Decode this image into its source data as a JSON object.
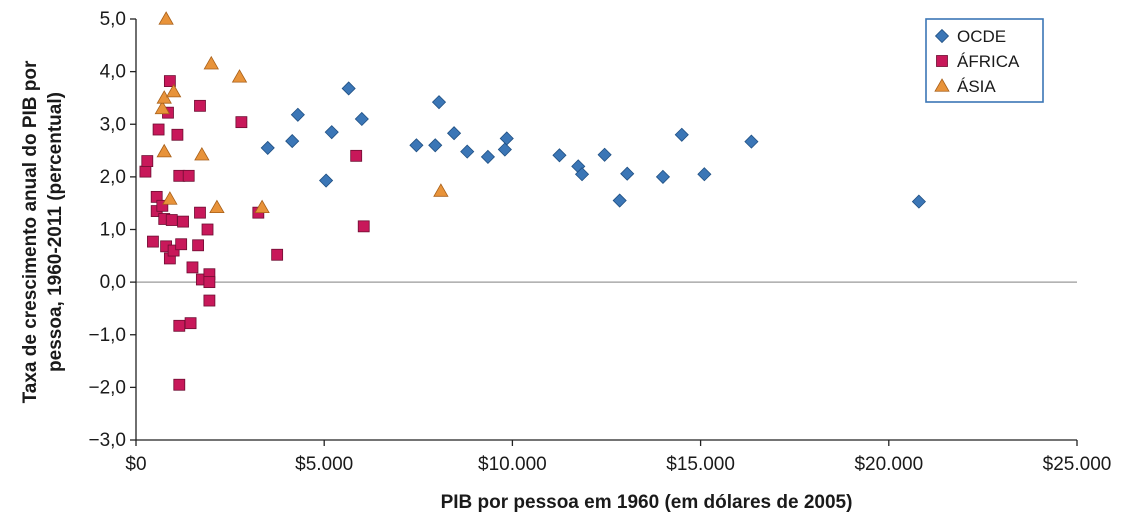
{
  "chart_data": {
    "type": "scatter",
    "xlabel": "PIB por pessoa em 1960 (em dólares de 2005)",
    "ylabel": [
      "Taxa de crescimento anual do PIB por",
      "pessoa, 1960-2011 (percentual)"
    ],
    "xlim": [
      0,
      25000
    ],
    "ylim": [
      -3,
      5
    ],
    "x_ticks": [
      0,
      5000,
      10000,
      15000,
      20000,
      25000
    ],
    "x_tick_labels": [
      "$0",
      "$5.000",
      "$10.000",
      "$15.000",
      "$20.000",
      "$25.000"
    ],
    "y_ticks": [
      5,
      4,
      3,
      2,
      1,
      0,
      -1,
      -2,
      -3
    ],
    "y_tick_labels": [
      "5,0",
      "4,0",
      "3,0",
      "2,0",
      "1,0",
      "0,0",
      "−1,0",
      "−2,0",
      "−3,0"
    ],
    "grid": false,
    "zero_line": true,
    "legend_position": "top-right",
    "series": [
      {
        "name": "OCDE",
        "marker": "diamond",
        "color": "#3b76b6",
        "points": [
          [
            3500,
            2.55
          ],
          [
            4150,
            2.68
          ],
          [
            4300,
            3.18
          ],
          [
            5050,
            1.93
          ],
          [
            5200,
            2.85
          ],
          [
            5650,
            3.68
          ],
          [
            6000,
            3.1
          ],
          [
            7450,
            2.6
          ],
          [
            7950,
            2.6
          ],
          [
            8050,
            3.42
          ],
          [
            8450,
            2.83
          ],
          [
            8800,
            2.48
          ],
          [
            9350,
            2.38
          ],
          [
            9800,
            2.52
          ],
          [
            9850,
            2.73
          ],
          [
            11250,
            2.41
          ],
          [
            11750,
            2.2
          ],
          [
            11850,
            2.05
          ],
          [
            12450,
            2.42
          ],
          [
            12850,
            1.55
          ],
          [
            13050,
            2.06
          ],
          [
            14000,
            2.0
          ],
          [
            14500,
            2.8
          ],
          [
            15100,
            2.05
          ],
          [
            16350,
            2.67
          ],
          [
            20800,
            1.53
          ]
        ]
      },
      {
        "name": "ÁFRICA",
        "marker": "square",
        "color": "#c8185a",
        "points": [
          [
            250,
            2.1
          ],
          [
            300,
            2.3
          ],
          [
            450,
            0.77
          ],
          [
            550,
            1.62
          ],
          [
            600,
            2.9
          ],
          [
            550,
            1.35
          ],
          [
            700,
            1.45
          ],
          [
            750,
            1.2
          ],
          [
            800,
            0.68
          ],
          [
            850,
            3.22
          ],
          [
            900,
            3.82
          ],
          [
            900,
            0.45
          ],
          [
            950,
            1.18
          ],
          [
            1000,
            0.6
          ],
          [
            1100,
            2.8
          ],
          [
            1150,
            2.02
          ],
          [
            1150,
            -0.83
          ],
          [
            1150,
            -1.95
          ],
          [
            1200,
            0.72
          ],
          [
            1250,
            1.15
          ],
          [
            1400,
            2.02
          ],
          [
            1450,
            -0.78
          ],
          [
            1500,
            0.28
          ],
          [
            1650,
            0.7
          ],
          [
            1700,
            3.35
          ],
          [
            1700,
            1.32
          ],
          [
            1750,
            0.05
          ],
          [
            1900,
            1.0
          ],
          [
            1950,
            0.15
          ],
          [
            1950,
            0.0
          ],
          [
            1950,
            -0.35
          ],
          [
            2800,
            3.04
          ],
          [
            3250,
            1.32
          ],
          [
            3750,
            0.52
          ],
          [
            5850,
            2.4
          ],
          [
            6050,
            1.06
          ]
        ]
      },
      {
        "name": "ÁSIA",
        "marker": "triangle",
        "color": "#e8933a",
        "points": [
          [
            800,
            5.0
          ],
          [
            700,
            3.3
          ],
          [
            750,
            3.5
          ],
          [
            1000,
            3.62
          ],
          [
            750,
            2.48
          ],
          [
            900,
            1.58
          ],
          [
            1750,
            2.42
          ],
          [
            2000,
            4.15
          ],
          [
            2150,
            1.42
          ],
          [
            2750,
            3.9
          ],
          [
            3350,
            1.42
          ],
          [
            8100,
            1.73
          ]
        ]
      }
    ]
  }
}
